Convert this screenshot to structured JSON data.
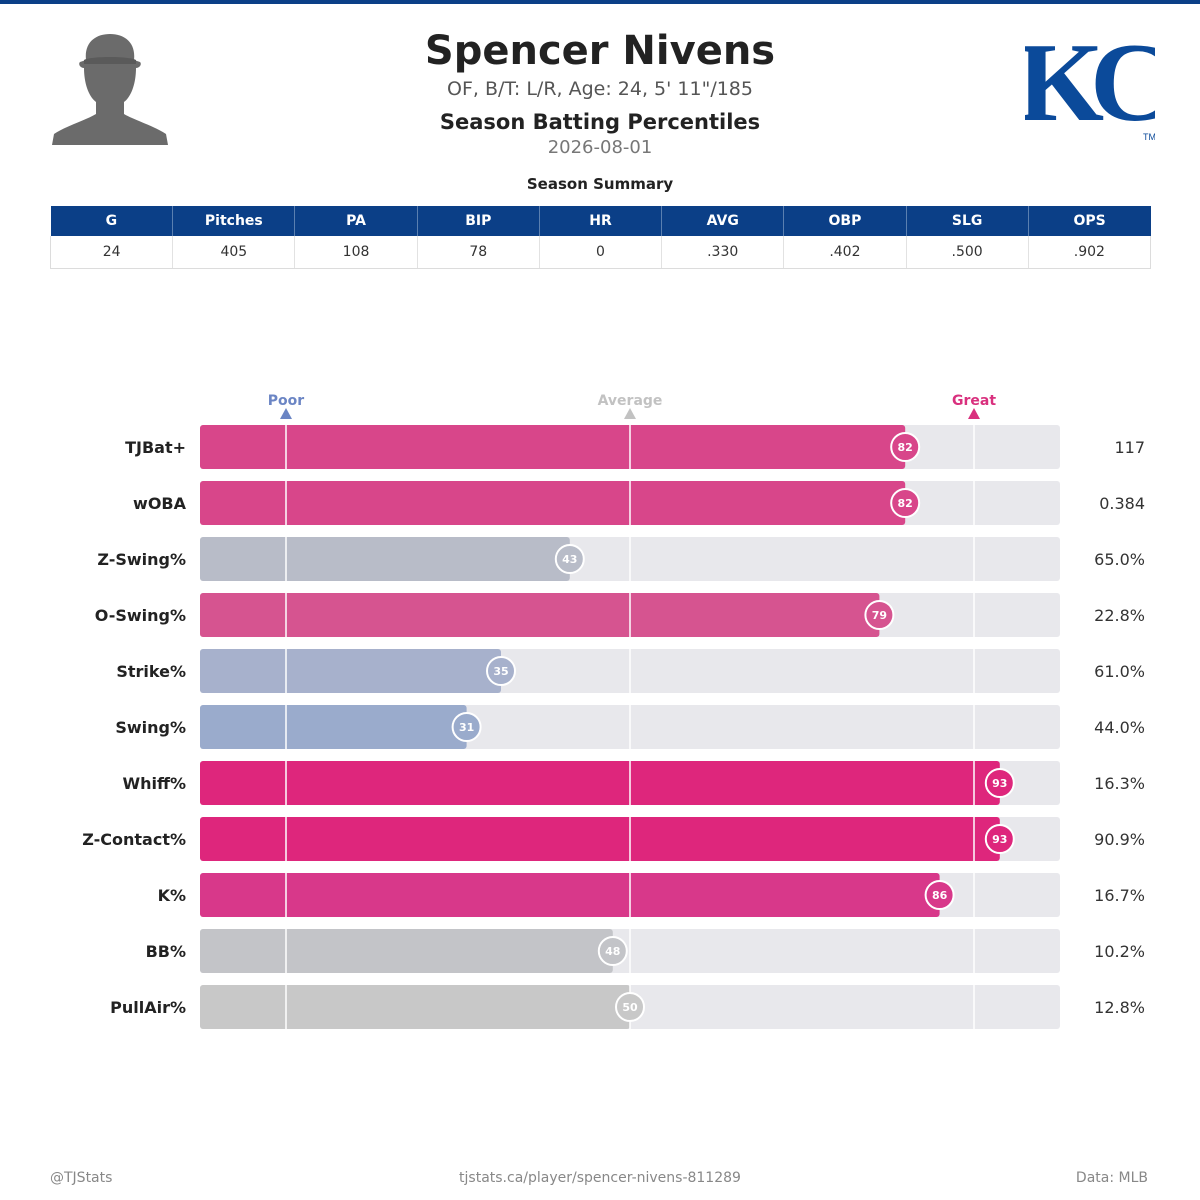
{
  "header": {
    "player_name": "Spencer Nivens",
    "bio": "OF, B/T: L/R, Age: 24, 5' 11\"/185",
    "subtitle": "Season Batting Percentiles",
    "date": "2026-08-01",
    "avatar_icon": "player-silhouette-icon",
    "logo_text": "KC",
    "logo_tm": "TM",
    "logo_color": "#0b4a9a"
  },
  "summary": {
    "title": "Season Summary",
    "columns": [
      "G",
      "Pitches",
      "PA",
      "BIP",
      "HR",
      "AVG",
      "OBP",
      "SLG",
      "OPS"
    ],
    "values": [
      "24",
      "405",
      "108",
      "78",
      "0",
      ".330",
      ".402",
      ".500",
      ".902"
    ]
  },
  "chart_data": {
    "type": "bar",
    "orientation": "horizontal",
    "title": "",
    "xlim": [
      0,
      100
    ],
    "reference_markers": [
      {
        "label": "Poor",
        "value": 10,
        "color": "#6b85c4"
      },
      {
        "label": "Average",
        "value": 50,
        "color": "#c2c2c2"
      },
      {
        "label": "Great",
        "value": 90,
        "color": "#d9307e"
      }
    ],
    "categories": [
      "TJBat+",
      "wOBA",
      "Z-Swing%",
      "O-Swing%",
      "Strike%",
      "Swing%",
      "Whiff%",
      "Z-Contact%",
      "K%",
      "BB%",
      "PullAir%"
    ],
    "percentiles": [
      82,
      82,
      43,
      79,
      35,
      31,
      93,
      93,
      86,
      48,
      50
    ],
    "stat_values": [
      "117",
      "0.384",
      "65.0%",
      "22.8%",
      "61.0%",
      "44.0%",
      "16.3%",
      "90.9%",
      "16.7%",
      "10.2%",
      "12.8%"
    ],
    "bar_colors": [
      "#d8468a",
      "#d8468a",
      "#b8bcc8",
      "#d65490",
      "#a7b1cc",
      "#9aabcc",
      "#de267c",
      "#de267c",
      "#d8388a",
      "#c3c4c8",
      "#c8c8c8"
    ],
    "track_color": "#e8e8ec"
  },
  "footer": {
    "left": "@TJStats",
    "center": "tjstats.ca/player/spencer-nivens-811289",
    "right": "Data: MLB"
  }
}
